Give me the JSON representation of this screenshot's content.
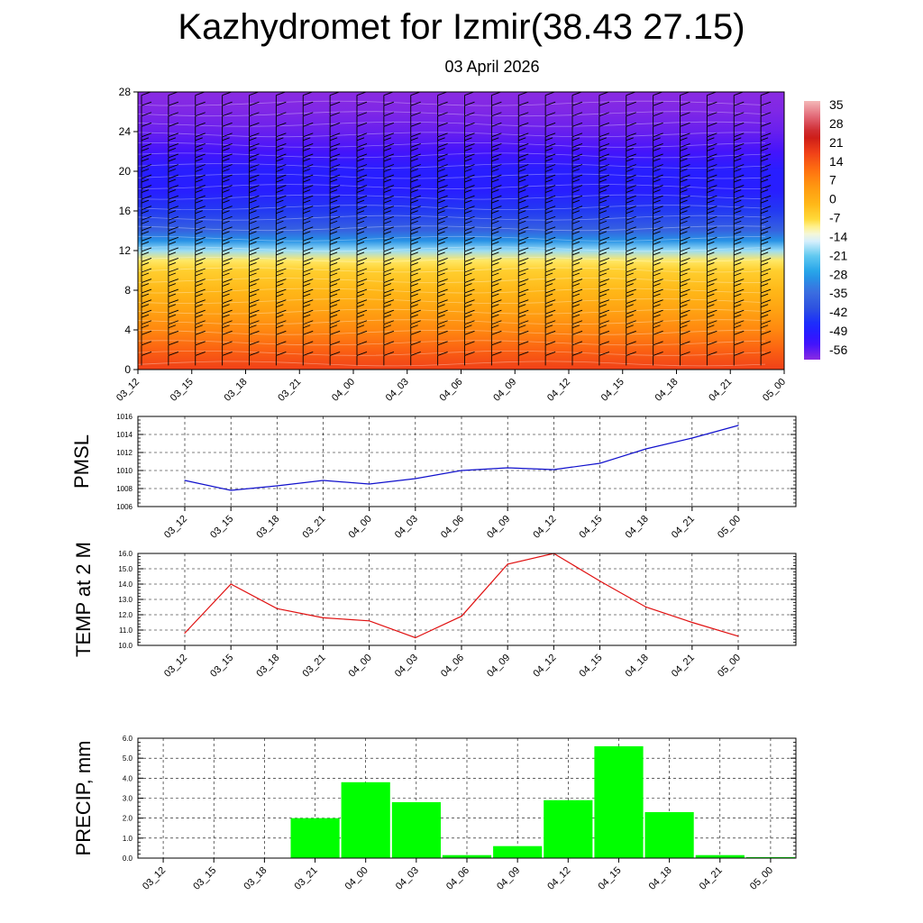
{
  "title": "Kazhydromet for Izmir(38.43 27.15)",
  "subtitle": "03 April 2026",
  "colors": {
    "pressure_line": "#1010cc",
    "temp_line": "#e01010",
    "precip_bar": "#00ff00",
    "grid": "#000000"
  },
  "chart_data": [
    {
      "type": "heatmap",
      "name": "temperature-wind-cross-section",
      "title": "",
      "x_tick_labels": [
        "03_12",
        "03_15",
        "03_18",
        "03_21",
        "04_00",
        "04_03",
        "04_06",
        "04_09",
        "04_12",
        "04_15",
        "04_18",
        "04_21",
        "05_00"
      ],
      "y_tick_labels": [
        "0",
        "4",
        "8",
        "12",
        "16",
        "20",
        "24",
        "28"
      ],
      "ylim": [
        0,
        28
      ],
      "colorbar_labels": [
        "35",
        "28",
        "21",
        "14",
        "7",
        "0",
        "-7",
        "-14",
        "-21",
        "-28",
        "-35",
        "-42",
        "-49",
        "-56"
      ],
      "colorbar_range": [
        -63,
        42
      ],
      "has_wind_barbs": true,
      "temperature_profile": [
        {
          "level": 0,
          "value": 21
        },
        {
          "level": 2,
          "value": 16
        },
        {
          "level": 4,
          "value": 10
        },
        {
          "level": 6,
          "value": 5
        },
        {
          "level": 8,
          "value": 0
        },
        {
          "level": 10,
          "value": -4
        },
        {
          "level": 11,
          "value": -8
        },
        {
          "level": 12,
          "value": -18
        },
        {
          "level": 13,
          "value": -30
        },
        {
          "level": 14,
          "value": -38
        },
        {
          "level": 16,
          "value": -46
        },
        {
          "level": 18,
          "value": -52
        },
        {
          "level": 20,
          "value": -52
        },
        {
          "level": 22,
          "value": -57
        },
        {
          "level": 24,
          "value": -60
        },
        {
          "level": 26,
          "value": -62
        },
        {
          "level": 28,
          "value": -63
        }
      ]
    },
    {
      "type": "line",
      "name": "pmsl",
      "ylabel": "PMSL",
      "categories": [
        "03_12",
        "03_15",
        "03_18",
        "03_21",
        "04_00",
        "04_03",
        "04_06",
        "04_09",
        "04_12",
        "04_15",
        "04_18",
        "04_21",
        "05_00"
      ],
      "values": [
        1008.9,
        1007.8,
        1008.3,
        1008.9,
        1008.5,
        1009.1,
        1010.0,
        1010.3,
        1010.1,
        1010.8,
        1012.4,
        1013.6,
        1015.0
      ],
      "ylim": [
        1006,
        1016
      ],
      "y_tick_labels": [
        "1006",
        "1008",
        "1010",
        "1012",
        "1014",
        "1016"
      ],
      "grid": true
    },
    {
      "type": "line",
      "name": "temp-2m",
      "ylabel": "TEMP at 2 M",
      "categories": [
        "03_12",
        "03_15",
        "03_18",
        "03_21",
        "04_00",
        "04_03",
        "04_06",
        "04_09",
        "04_12",
        "04_15",
        "04_18",
        "04_21",
        "05_00"
      ],
      "values": [
        10.8,
        14.0,
        12.4,
        11.8,
        11.6,
        10.5,
        11.9,
        15.3,
        16.0,
        14.2,
        12.5,
        11.5,
        10.6
      ],
      "ylim": [
        10,
        16
      ],
      "y_tick_labels": [
        "10.0",
        "11.0",
        "12.0",
        "13.0",
        "14.0",
        "15.0",
        "16.0"
      ],
      "grid": true
    },
    {
      "type": "bar",
      "name": "precip",
      "ylabel": "PRECIP, mm",
      "categories": [
        "03_12",
        "03_15",
        "03_18",
        "03_21",
        "04_00",
        "04_03",
        "04_06",
        "04_09",
        "04_12",
        "04_15",
        "04_18",
        "04_21",
        "05_00"
      ],
      "values": [
        0,
        0,
        0,
        2.0,
        3.8,
        2.8,
        0.15,
        0.6,
        2.9,
        5.6,
        2.3,
        0.15,
        0.05
      ],
      "ylim": [
        0,
        6
      ],
      "y_tick_labels": [
        "0.0",
        "1.0",
        "2.0",
        "3.0",
        "4.0",
        "5.0",
        "6.0"
      ],
      "grid": true
    }
  ]
}
